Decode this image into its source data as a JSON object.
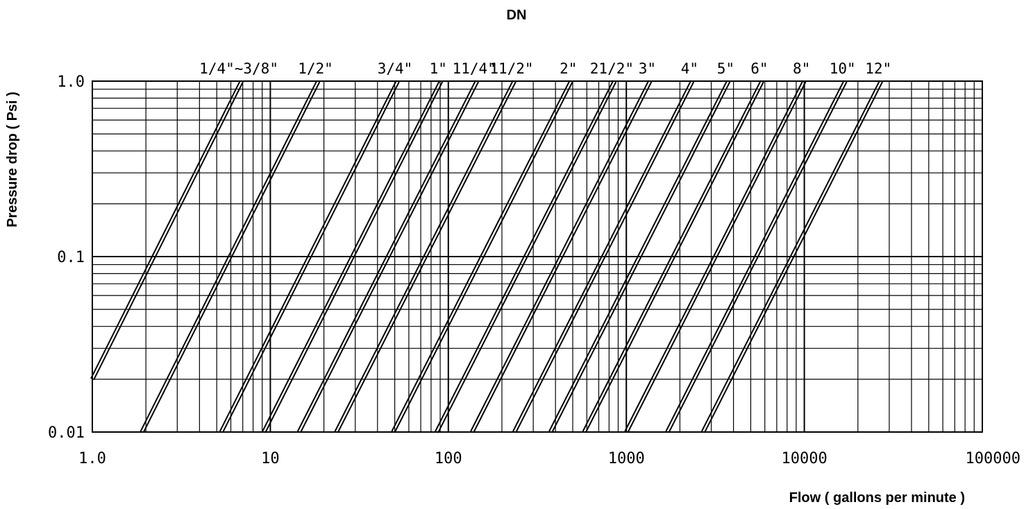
{
  "chart_data": {
    "type": "line",
    "title": "DN",
    "xlabel": "Flow ( gallons per minute )",
    "ylabel": "Pressure drop ( Psi )",
    "x_scale": "log",
    "y_scale": "log",
    "xlim": [
      1,
      100000
    ],
    "ylim": [
      0.01,
      1.0
    ],
    "grid": true,
    "x_ticks": [
      {
        "value": 1,
        "label": "1.0"
      },
      {
        "value": 10,
        "label": "10"
      },
      {
        "value": 100,
        "label": "100"
      },
      {
        "value": 1000,
        "label": "1000"
      },
      {
        "value": 10000,
        "label": "10000"
      },
      {
        "value": 100000,
        "label": "100000"
      }
    ],
    "y_ticks": [
      {
        "value": 1.0,
        "label": "1.0"
      },
      {
        "value": 0.1,
        "label": "0.1"
      },
      {
        "value": 0.01,
        "label": "0.01"
      }
    ],
    "series": [
      {
        "name": "1/4\"~3/8\"",
        "x": [
          1.0,
          6.9
        ],
        "y": [
          0.02,
          1.0
        ]
      },
      {
        "name": "1/2\"",
        "x": [
          1.9,
          18.6
        ],
        "y": [
          0.01,
          1.0
        ]
      },
      {
        "name": "3/4\"",
        "x": [
          5.3,
          52
        ],
        "y": [
          0.01,
          1.0
        ]
      },
      {
        "name": "1\"",
        "x": [
          9.2,
          91
        ],
        "y": [
          0.01,
          1.0
        ]
      },
      {
        "name": "11/4\"",
        "x": [
          14.5,
          145
        ],
        "y": [
          0.01,
          1.0
        ]
      },
      {
        "name": "11/2\"",
        "x": [
          23.5,
          235
        ],
        "y": [
          0.01,
          1.0
        ]
      },
      {
        "name": "2\"",
        "x": [
          49,
          490
        ],
        "y": [
          0.01,
          1.0
        ]
      },
      {
        "name": "21/2\"",
        "x": [
          86,
          860
        ],
        "y": [
          0.01,
          1.0
        ]
      },
      {
        "name": "3\"",
        "x": [
          136,
          1360
        ],
        "y": [
          0.01,
          1.0
        ]
      },
      {
        "name": "4\"",
        "x": [
          235,
          2350
        ],
        "y": [
          0.01,
          1.0
        ]
      },
      {
        "name": "5\"",
        "x": [
          375,
          3750
        ],
        "y": [
          0.01,
          1.0
        ]
      },
      {
        "name": "6\"",
        "x": [
          580,
          5800
        ],
        "y": [
          0.01,
          1.0
        ]
      },
      {
        "name": "8\"",
        "x": [
          1000,
          10000
        ],
        "y": [
          0.01,
          1.0
        ]
      },
      {
        "name": "10\"",
        "x": [
          1700,
          17000
        ],
        "y": [
          0.01,
          1.0
        ]
      },
      {
        "name": "12\"",
        "x": [
          2700,
          27000
        ],
        "y": [
          0.01,
          1.0
        ]
      }
    ]
  }
}
